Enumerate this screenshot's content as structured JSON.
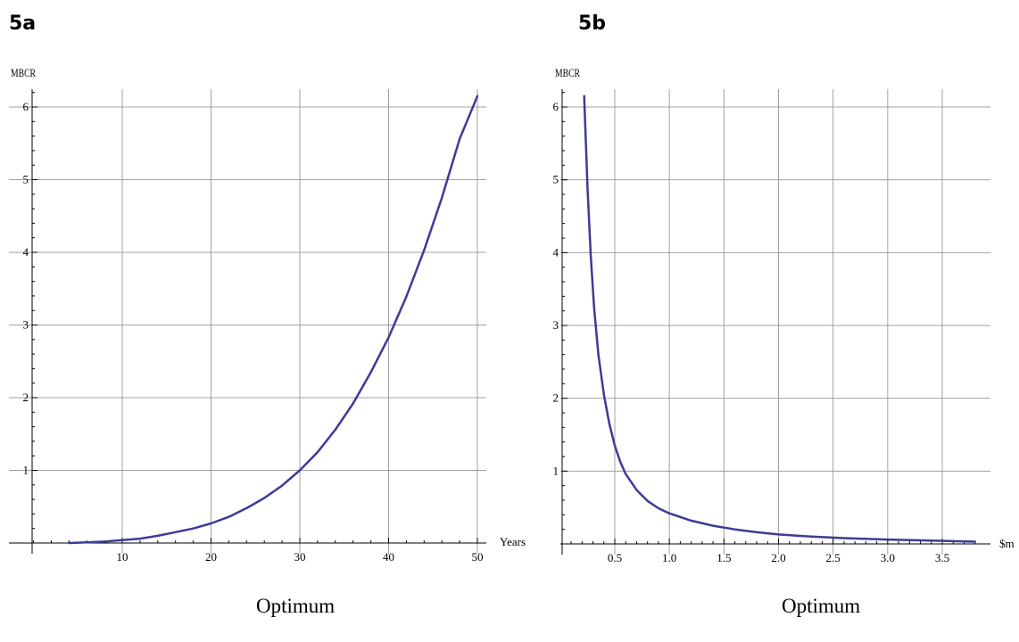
{
  "panels": {
    "a": {
      "label": "5a",
      "caption": "Optimum"
    },
    "b": {
      "label": "5b",
      "caption": "Optimum"
    }
  },
  "colors": {
    "curve": "#3c3c96",
    "grid": "#a0a0a0",
    "axis": "#000000"
  },
  "chart_data": [
    {
      "type": "line",
      "title": "",
      "xlabel": "Years",
      "ylabel": "MBCR",
      "xlim": [
        0,
        50
      ],
      "ylim": [
        0,
        6.2
      ],
      "xticks": [
        10,
        20,
        30,
        40,
        50
      ],
      "xtick_labels": [
        "10",
        "20",
        "30",
        "40",
        "50"
      ],
      "yticks": [
        1,
        2,
        3,
        4,
        5,
        6
      ],
      "ytick_labels": [
        "1",
        "2",
        "3",
        "4",
        "5",
        "6"
      ],
      "grid": true,
      "series": [
        {
          "x": [
            4,
            6,
            8,
            10,
            12,
            14,
            16,
            18,
            20,
            22,
            24,
            26,
            28,
            30,
            32,
            34,
            36,
            38,
            40,
            42,
            44,
            46,
            48,
            50
          ],
          "y": [
            0.0,
            0.01,
            0.02,
            0.04,
            0.06,
            0.1,
            0.15,
            0.2,
            0.27,
            0.36,
            0.48,
            0.62,
            0.79,
            1.0,
            1.25,
            1.56,
            1.92,
            2.35,
            2.83,
            3.39,
            4.03,
            4.75,
            5.56,
            6.15
          ]
        }
      ]
    },
    {
      "type": "line",
      "title": "",
      "xlabel": "$m",
      "ylabel": "MBCR",
      "xlim": [
        0.05,
        3.85
      ],
      "ylim": [
        0,
        6.2
      ],
      "xticks": [
        0.5,
        1.0,
        1.5,
        2.0,
        2.5,
        3.0,
        3.5
      ],
      "xtick_labels": [
        "0.5",
        "1.0",
        "1.5",
        "2.0",
        "2.5",
        "3.0",
        "3.5"
      ],
      "yticks": [
        1,
        2,
        3,
        4,
        5,
        6
      ],
      "ytick_labels": [
        "1",
        "2",
        "3",
        "4",
        "5",
        "6"
      ],
      "grid": true,
      "series": [
        {
          "x": [
            0.22,
            0.25,
            0.28,
            0.31,
            0.35,
            0.4,
            0.45,
            0.5,
            0.55,
            0.6,
            0.7,
            0.8,
            0.9,
            1.0,
            1.2,
            1.4,
            1.6,
            1.8,
            2.0,
            2.3,
            2.6,
            3.0,
            3.4,
            3.8
          ],
          "y": [
            6.15,
            4.9,
            3.95,
            3.25,
            2.6,
            2.05,
            1.65,
            1.35,
            1.13,
            0.96,
            0.74,
            0.59,
            0.49,
            0.42,
            0.32,
            0.25,
            0.2,
            0.16,
            0.13,
            0.1,
            0.08,
            0.06,
            0.045,
            0.03
          ]
        }
      ]
    }
  ]
}
